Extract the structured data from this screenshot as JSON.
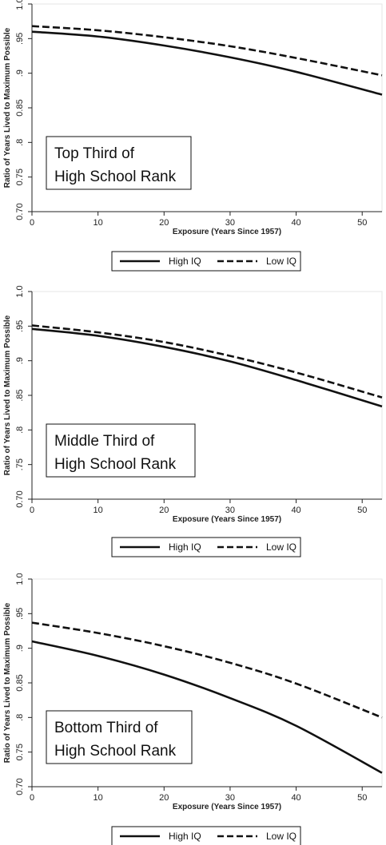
{
  "chart_data": [
    {
      "type": "line",
      "title": "",
      "annotation": [
        "Top Third of",
        "High School Rank"
      ],
      "xlabel": "Exposure (Years Since 1957)",
      "ylabel": "Ratio of Years Lived to Maximum Possible",
      "xlim": [
        0,
        53
      ],
      "ylim": [
        0.7,
        1.0
      ],
      "xticks": [
        0,
        10,
        20,
        30,
        40,
        50
      ],
      "xtick_labels": [
        "0",
        "10",
        "20",
        "30",
        "40",
        "50"
      ],
      "yticks": [
        0.7,
        0.75,
        0.8,
        0.85,
        0.9,
        0.95,
        1.0
      ],
      "ytick_labels": [
        "0.70",
        "0.75",
        ".8",
        "0.85",
        ".9",
        ".95",
        "1.0"
      ],
      "x": [
        0,
        10,
        20,
        30,
        40,
        53
      ],
      "series": [
        {
          "name": "High IQ",
          "style": "solid",
          "values": [
            0.96,
            0.953,
            0.94,
            0.923,
            0.902,
            0.869
          ]
        },
        {
          "name": "Low IQ",
          "style": "dashed",
          "values": [
            0.968,
            0.962,
            0.952,
            0.939,
            0.922,
            0.897
          ]
        }
      ],
      "legend": {
        "position": "bottom"
      }
    },
    {
      "type": "line",
      "title": "",
      "annotation": [
        "Middle Third of",
        "High School Rank"
      ],
      "xlabel": "Exposure (Years Since 1957)",
      "ylabel": "Ratio of Years Lived to Maximum Possible",
      "xlim": [
        0,
        53
      ],
      "ylim": [
        0.7,
        1.0
      ],
      "xticks": [
        0,
        10,
        20,
        30,
        40,
        50
      ],
      "xtick_labels": [
        "0",
        "10",
        "20",
        "30",
        "40",
        "50"
      ],
      "yticks": [
        0.7,
        0.75,
        0.8,
        0.85,
        0.9,
        0.95,
        1.0
      ],
      "ytick_labels": [
        "0.70",
        ".75",
        ".8",
        ".85",
        ".9",
        ".95",
        "1.0"
      ],
      "x": [
        0,
        10,
        20,
        30,
        40,
        53
      ],
      "series": [
        {
          "name": "High IQ",
          "style": "solid",
          "values": [
            0.946,
            0.936,
            0.92,
            0.899,
            0.872,
            0.834
          ]
        },
        {
          "name": "Low IQ",
          "style": "dashed",
          "values": [
            0.951,
            0.941,
            0.927,
            0.907,
            0.883,
            0.847
          ]
        }
      ],
      "legend": {
        "position": "bottom"
      }
    },
    {
      "type": "line",
      "title": "",
      "annotation": [
        "Bottom Third of",
        "High School Rank"
      ],
      "xlabel": "Exposure (Years Since 1957)",
      "ylabel": "Ratio of Years Lived to Maximum Possible",
      "xlim": [
        0,
        53
      ],
      "ylim": [
        0.7,
        1.0
      ],
      "xticks": [
        0,
        10,
        20,
        30,
        40,
        50
      ],
      "xtick_labels": [
        "0",
        "10",
        "20",
        "30",
        "40",
        "50"
      ],
      "yticks": [
        0.7,
        0.75,
        0.8,
        0.85,
        0.9,
        0.95,
        1.0
      ],
      "ytick_labels": [
        "0.70",
        "0.75",
        ".8",
        "0.85",
        ".9",
        ".95",
        "1.0"
      ],
      "x": [
        0,
        10,
        20,
        30,
        40,
        53
      ],
      "series": [
        {
          "name": "High IQ",
          "style": "solid",
          "values": [
            0.91,
            0.889,
            0.862,
            0.828,
            0.788,
            0.72
          ]
        },
        {
          "name": "Low IQ",
          "style": "dashed",
          "values": [
            0.937,
            0.922,
            0.903,
            0.879,
            0.849,
            0.8
          ]
        }
      ],
      "legend": {
        "position": "bottom"
      }
    }
  ]
}
